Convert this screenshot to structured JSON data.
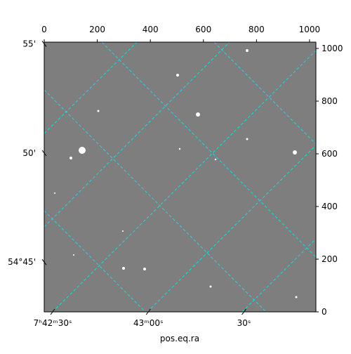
{
  "chart_data": {
    "type": "image",
    "xlabel": "pos.eq.ra",
    "xlim": [
      0,
      1024
    ],
    "xticks": [
      0,
      200,
      400,
      600,
      800,
      1000
    ],
    "ylim": [
      0,
      1024
    ],
    "yticks": [
      0,
      200,
      400,
      600,
      800,
      1000
    ],
    "ra_edge_lim": [
      115.614,
      115.969
    ],
    "ra_ticks": [
      {
        "value": 115.625,
        "label": "7ʰ42ᵐ30ˢ"
      },
      {
        "value": 115.75,
        "label": "43ᵐ00ˢ"
      },
      {
        "value": 115.875,
        "label": "30ˢ"
      }
    ],
    "dec_edge_lim": [
      54.918,
      54.712
    ],
    "dec_ticks": [
      {
        "value": 54.75,
        "label": "54°45'"
      },
      {
        "value": 54.8333,
        "label": "50'"
      },
      {
        "value": 54.9167,
        "label": "55'"
      }
    ]
  }
}
